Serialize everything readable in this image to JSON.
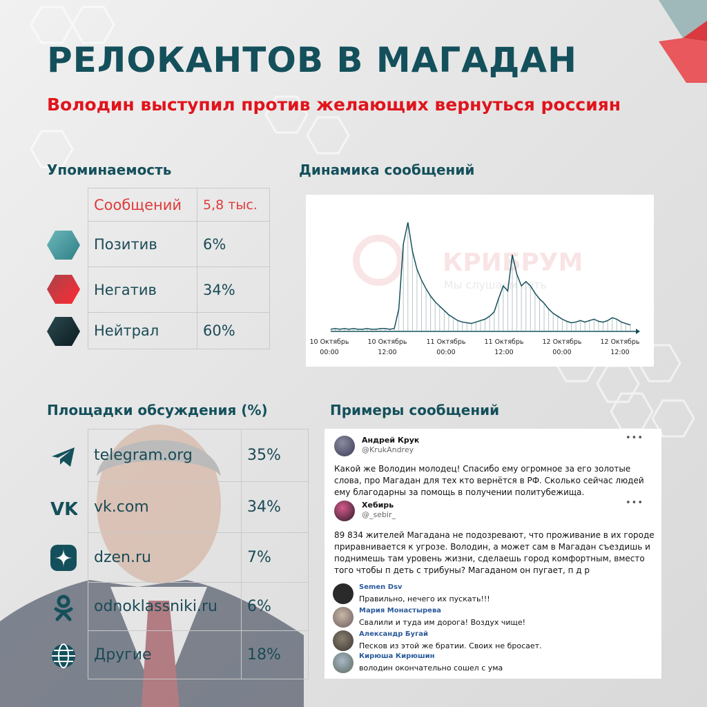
{
  "title": "РЕЛОКАНТОВ В МАГАДАН",
  "subtitle": "Володин выступил против желающих вернуться россиян",
  "mentions": {
    "heading": "Упоминаемость",
    "rows": [
      {
        "label": "Сообщений",
        "value": "5,8 тыс.",
        "color": "#e03a3a"
      },
      {
        "label": "Позитив",
        "value": "6%",
        "color": "#4fa3a8"
      },
      {
        "label": "Негатив",
        "value": "34%",
        "color": "#e0303a"
      },
      {
        "label": "Нейтрал",
        "value": "60%",
        "color": "#1f3a40"
      }
    ]
  },
  "dynamics": {
    "heading": "Динамика сообщений",
    "watermark": "КРИБРУМ",
    "watermark_sub": "Мы слушаем сеть"
  },
  "chart_data": {
    "type": "area",
    "x_ticks": [
      {
        "date": "10 Октябрь",
        "time": "00:00"
      },
      {
        "date": "10 Октябрь",
        "time": "12:00"
      },
      {
        "date": "11 Октябрь",
        "time": "00:00"
      },
      {
        "date": "11 Октябрь",
        "time": "12:00"
      },
      {
        "date": "12 Октябрь",
        "time": "00:00"
      },
      {
        "date": "12 Октябрь",
        "time": "12:00"
      }
    ],
    "values": [
      2,
      3,
      2,
      3,
      2,
      3,
      2,
      2,
      3,
      2,
      2,
      3,
      3,
      2,
      3,
      30,
      120,
      150,
      110,
      85,
      70,
      58,
      48,
      40,
      34,
      28,
      22,
      18,
      14,
      12,
      11,
      10,
      12,
      14,
      16,
      20,
      26,
      45,
      62,
      55,
      105,
      78,
      62,
      68,
      62,
      52,
      44,
      38,
      30,
      24,
      20,
      16,
      13,
      11,
      12,
      14,
      12,
      14,
      16,
      13,
      12,
      14,
      18,
      16,
      12,
      10,
      8
    ],
    "grid": false
  },
  "platforms": {
    "heading": "Площадки обсуждения (%)",
    "rows": [
      {
        "name": "telegram.org",
        "value": "35%",
        "icon": "telegram-icon"
      },
      {
        "name": "vk.com",
        "value": "34%",
        "icon": "vk-icon"
      },
      {
        "name": "dzen.ru",
        "value": "7%",
        "icon": "dzen-icon"
      },
      {
        "name": "odnoklassniki.ru",
        "value": "6%",
        "icon": "odnoklassniki-icon"
      },
      {
        "name": "Другие",
        "value": "18%",
        "icon": "globe-icon"
      }
    ]
  },
  "examples": {
    "heading": "Примеры сообщений",
    "posts": [
      {
        "name": "Андрей Крук",
        "handle": "@KrukAndrey",
        "lines": [
          "Какой же Володин молодец! Спасибо ему огромное за его золотые",
          "слова, про Магадан для тех кто вернётся в РФ. Сколько сейчас людей",
          "ему благодарны за помощь в получении политубежища."
        ]
      },
      {
        "name": "Хебирь",
        "handle": "@_sebir_",
        "lines": [
          "89 834 жителей Магадана не подозревают, что проживание в их городе",
          "приравнивается к угрозе. Володин, а может сам в Магадан съездишь и",
          "поднимешь там уровень жизни, сделаешь город комфортным, вместо",
          "того чтобы п    деть с трибуны? Магаданом он пугает, п  д  р"
        ]
      }
    ],
    "comments": [
      {
        "name": "Semen Dsv",
        "text": "Правильно, нечего их пускать!!!"
      },
      {
        "name": "Мария Монастырева",
        "text": "Свалили и туда им дорога! Воздух чище!"
      },
      {
        "name": "Александр Бугай",
        "text": "Песков из этой же братии. Своих не бросает."
      },
      {
        "name": "Кирюша Кирюшин",
        "text": "володин окончательно сошел с ума"
      }
    ],
    "more": "•••"
  },
  "colors": {
    "brand_dark": "#14505b",
    "accent_red": "#e0141c"
  }
}
